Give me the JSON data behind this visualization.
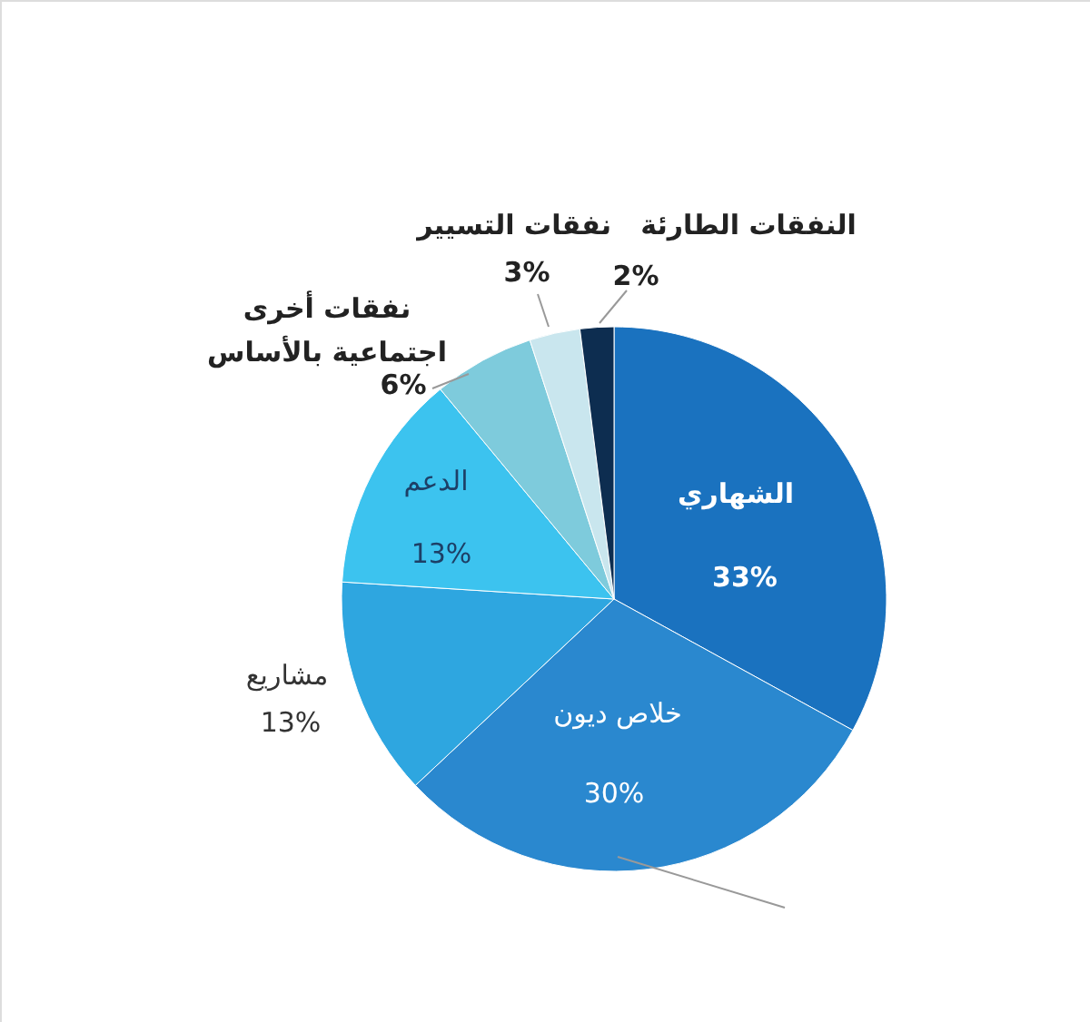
{
  "chart_data": {
    "type": "pie",
    "categories": [
      "الشهاري",
      "خلاص ديون",
      "مشاريع",
      "الدعم",
      "نفقات أخرى اجتماعية بالأساس",
      "نفقات التسيير",
      "النفقات الطارئة"
    ],
    "values": [
      33,
      30,
      13,
      13,
      6,
      3,
      2
    ],
    "value_labels": [
      "33%",
      "30%",
      "13%",
      "13%",
      "6%",
      "3%",
      "2%"
    ],
    "colors": [
      "#1a72bf",
      "#2a88cf",
      "#2ea6e0",
      "#3cc3ef",
      "#7ecbdc",
      "#c9e6ee",
      "#0d2d50"
    ]
  }
}
